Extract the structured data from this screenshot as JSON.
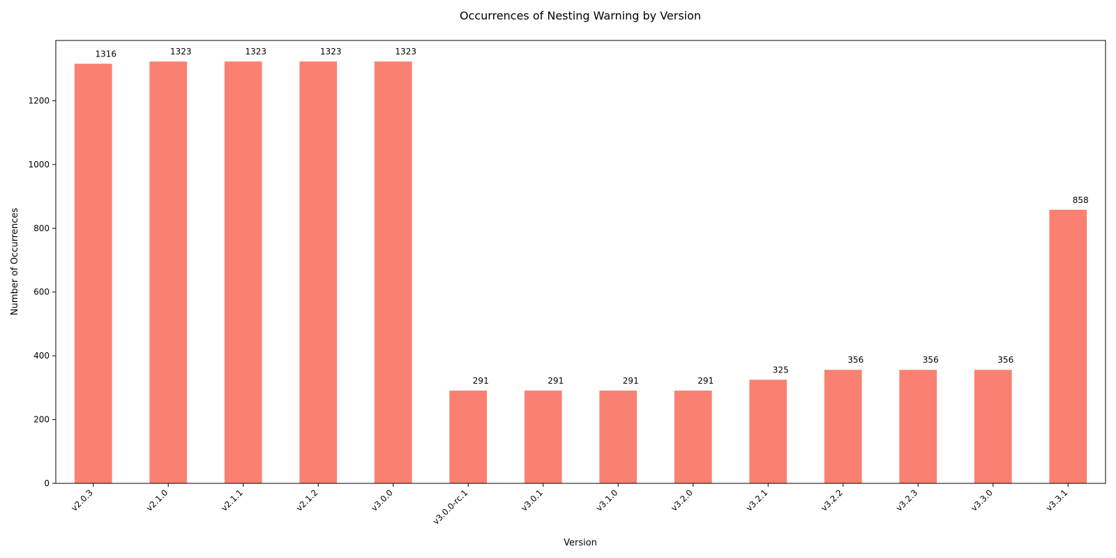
{
  "chart_data": {
    "type": "bar",
    "title": "Occurrences of Nesting Warning by Version",
    "xlabel": "Version",
    "ylabel": "Number of Occurrences",
    "categories": [
      "v2.0.3",
      "v2.1.0",
      "v2.1.1",
      "v2.1.2",
      "v3.0.0",
      "v3.0.0-rc.1",
      "v3.0.1",
      "v3.1.0",
      "v3.2.0",
      "v3.2.1",
      "v3.2.2",
      "v3.2.3",
      "v3.3.0",
      "v3.3.1"
    ],
    "values": [
      1316,
      1323,
      1323,
      1323,
      1323,
      291,
      291,
      291,
      291,
      325,
      356,
      356,
      356,
      858
    ],
    "data_labels": [
      "1316",
      "1323",
      "1323",
      "1323",
      "1323",
      "291",
      "291",
      "291",
      "291",
      "325",
      "356",
      "356",
      "356",
      "858"
    ],
    "ylim": [
      0,
      1389
    ],
    "yticks": [
      0,
      200,
      400,
      600,
      800,
      1000,
      1200
    ],
    "ytick_labels": [
      "0",
      "200",
      "400",
      "600",
      "800",
      "1000",
      "1200"
    ],
    "grid": false,
    "legend": "none",
    "bar_color": "#fa8072"
  }
}
